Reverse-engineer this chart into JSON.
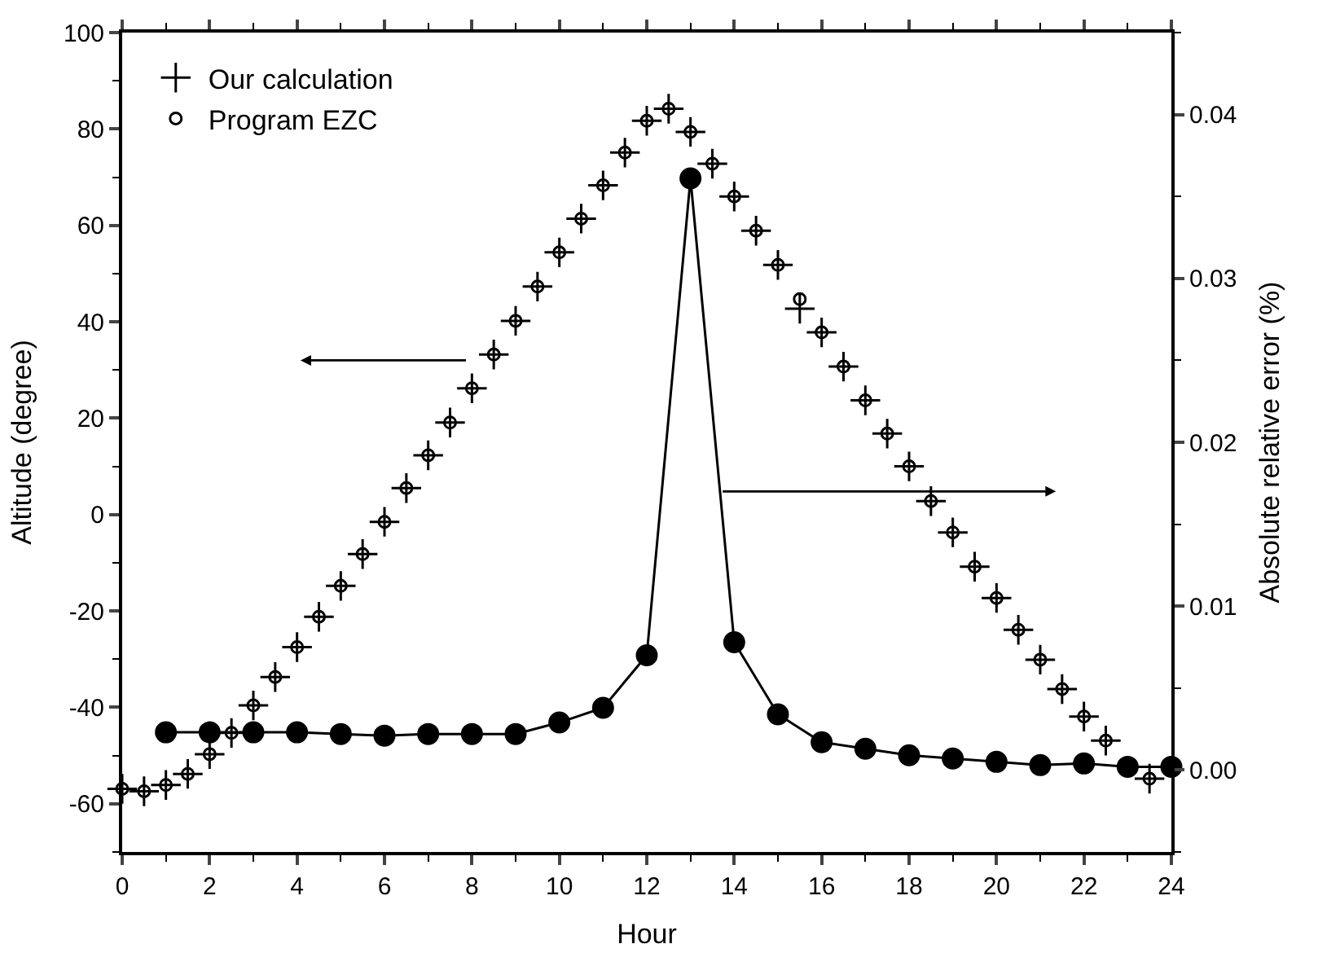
{
  "chart_data": {
    "type": "scatter",
    "xlabel": "Hour",
    "ylabel": "Altitude (degree)",
    "y2label": "Absolute relative error (%)",
    "xlim": [
      0,
      24
    ],
    "xticks": [
      0,
      2,
      4,
      6,
      8,
      10,
      12,
      14,
      16,
      18,
      20,
      22,
      24
    ],
    "ylim": [
      -70,
      100
    ],
    "yticks": [
      -60,
      -40,
      -20,
      0,
      20,
      40,
      60,
      80,
      100
    ],
    "y2lim": [
      -0.005,
      0.045
    ],
    "y2ticks": [
      {
        "value": 0,
        "label": "0.00"
      },
      {
        "value": 0.01,
        "label": "0.01"
      },
      {
        "value": 0.02,
        "label": "0.02"
      },
      {
        "value": 0.03,
        "label": "0.03"
      },
      {
        "value": 0.04,
        "label": "0.04"
      }
    ],
    "legend": "top left",
    "series": [
      {
        "name": "Our calculation",
        "marker": "cross",
        "color": "#000000",
        "x": [
          0,
          0.5,
          1,
          1.5,
          2,
          2.5,
          3,
          3.5,
          4,
          4.5,
          5,
          5.5,
          6,
          6.5,
          7,
          7.5,
          8,
          8.5,
          9,
          9.5,
          10,
          10.5,
          11,
          11.5,
          12,
          12.5,
          13,
          13.5,
          14,
          14.5,
          15,
          15.5,
          16,
          16.5,
          17,
          17.5,
          18,
          18.5,
          19,
          19.5,
          20,
          20.5,
          21,
          21.5,
          22,
          22.5,
          23,
          23.5
        ],
        "values": [
          -56.9,
          -57.4,
          -56.1,
          -53.8,
          -49.7,
          -45.3,
          -39.6,
          -33.7,
          -27.5,
          -21.2,
          -14.8,
          -8.2,
          -1.5,
          5.5,
          12.3,
          19.1,
          26.2,
          33.2,
          40.2,
          47.3,
          54.4,
          61.4,
          68.3,
          75.1,
          81.7,
          84.2,
          79.4,
          72.8,
          66.0,
          58.9,
          51.8,
          42.7,
          37.8,
          30.7,
          23.7,
          16.8,
          10.0,
          2.8,
          -3.7,
          -10.8,
          -17.3,
          -23.9,
          -30.1,
          -36.2,
          -41.9,
          -46.9,
          null,
          -54.8
        ]
      },
      {
        "name": "Program EZC",
        "marker": "circle",
        "color": "#000000",
        "x": [
          0,
          0.5,
          1,
          1.5,
          2,
          2.5,
          3,
          3.5,
          4,
          4.5,
          5,
          5.5,
          6,
          6.5,
          7,
          7.5,
          8,
          8.5,
          9,
          9.5,
          10,
          10.5,
          11,
          11.5,
          12,
          12.5,
          13,
          13.5,
          14,
          14.5,
          15,
          15.5,
          16,
          16.5,
          17,
          17.5,
          18,
          18.5,
          19,
          19.5,
          20,
          20.5,
          21,
          21.5,
          22,
          22.5,
          23,
          23.5
        ],
        "values": [
          -56.9,
          -57.4,
          -56.1,
          -53.8,
          -49.7,
          -45.3,
          -39.6,
          -33.7,
          -27.5,
          -21.2,
          -14.8,
          -8.2,
          -1.5,
          5.5,
          12.3,
          19.1,
          26.2,
          33.2,
          40.2,
          47.3,
          54.4,
          61.4,
          68.3,
          75.1,
          81.7,
          84.2,
          79.4,
          72.8,
          66.0,
          58.9,
          51.8,
          44.7,
          37.8,
          30.7,
          23.7,
          16.8,
          10.0,
          2.8,
          -3.7,
          -10.8,
          -17.3,
          -23.9,
          -30.1,
          -36.2,
          -41.9,
          -46.9,
          null,
          -54.8
        ]
      },
      {
        "type": "line",
        "axis": "y2",
        "marker": "circle",
        "line_style": "solid",
        "color": "#000000",
        "x": [
          1,
          2,
          3,
          4,
          5,
          6,
          7,
          8,
          9,
          10,
          11,
          12,
          13,
          14,
          15,
          16,
          17,
          18,
          19,
          20,
          21,
          22,
          23,
          24
        ],
        "values": [
          0.0023,
          0.0023,
          0.0023,
          0.0023,
          0.0022,
          0.0021,
          0.0022,
          0.0022,
          0.0022,
          0.0029,
          0.0038,
          0.007,
          0.0361,
          0.0078,
          0.0034,
          0.0017,
          0.0013,
          0.0009,
          0.0007,
          0.0005,
          0.0003,
          0.0004,
          0.0002,
          0.0002
        ]
      }
    ]
  }
}
